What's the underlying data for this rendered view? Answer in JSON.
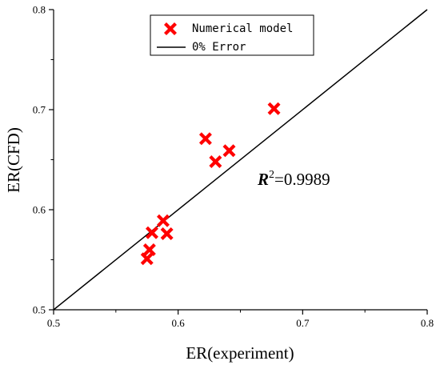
{
  "chart_data": {
    "type": "scatter",
    "xlabel": "ER(experiment)",
    "ylabel": "ER(CFD)",
    "xlim": [
      0.5,
      0.8
    ],
    "ylim": [
      0.5,
      0.8
    ],
    "x_ticks": [
      0.5,
      0.6,
      0.7,
      0.8
    ],
    "y_ticks": [
      0.5,
      0.6,
      0.7,
      0.8
    ],
    "grid": false,
    "legend_position": "top-center",
    "series": [
      {
        "name": "Numerical model",
        "marker": "x",
        "color": "#ff0000",
        "points": [
          {
            "x": 0.575,
            "y": 0.551
          },
          {
            "x": 0.577,
            "y": 0.56
          },
          {
            "x": 0.579,
            "y": 0.577
          },
          {
            "x": 0.588,
            "y": 0.589
          },
          {
            "x": 0.591,
            "y": 0.576
          },
          {
            "x": 0.622,
            "y": 0.671
          },
          {
            "x": 0.63,
            "y": 0.648
          },
          {
            "x": 0.641,
            "y": 0.659
          },
          {
            "x": 0.677,
            "y": 0.701
          }
        ]
      },
      {
        "name": "0% Error",
        "type": "line",
        "color": "#000000",
        "points": [
          {
            "x": 0.5,
            "y": 0.5
          },
          {
            "x": 0.8,
            "y": 0.8
          }
        ]
      }
    ],
    "annotation": {
      "variable": "R",
      "exponent": "2",
      "value_text": "=0.9989"
    }
  }
}
